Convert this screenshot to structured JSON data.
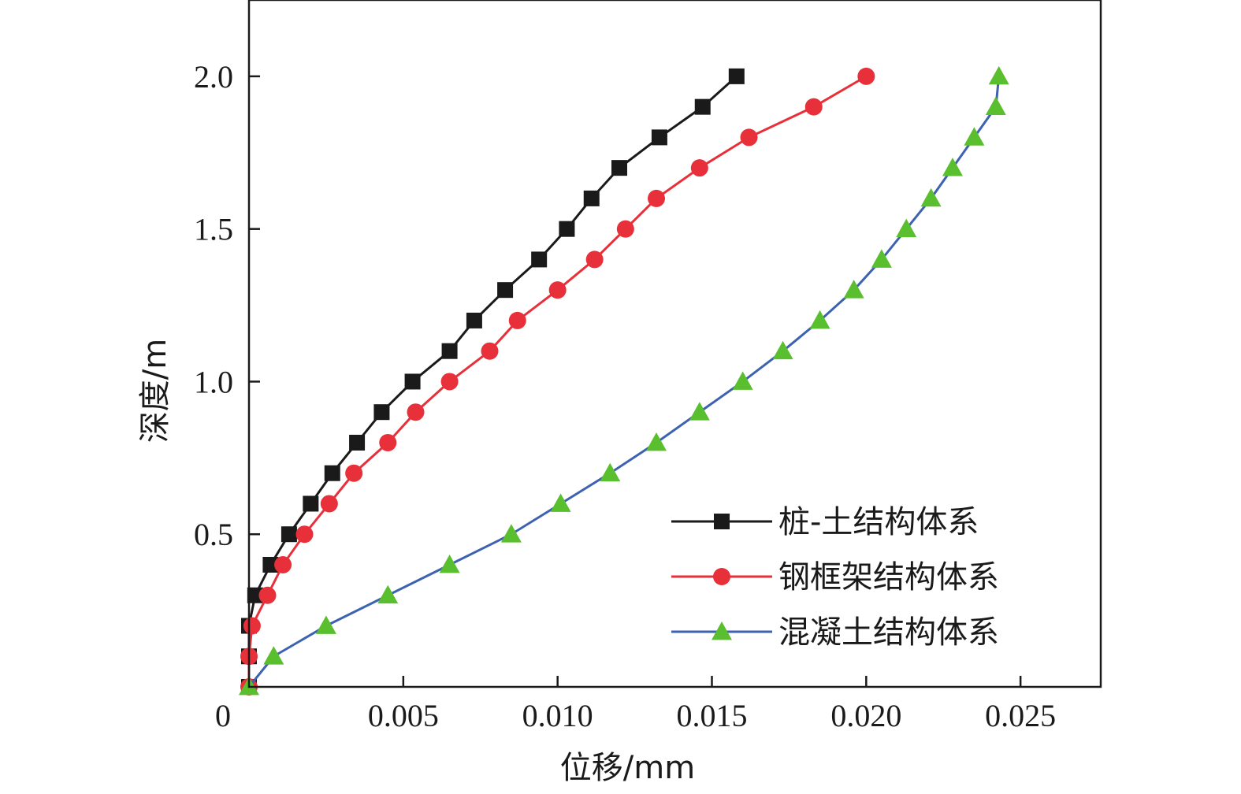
{
  "chart_data": {
    "type": "line",
    "title": "",
    "xlabel": "位移/mm",
    "ylabel": "深度/m",
    "xlim": [
      0,
      0.0276
    ],
    "ylim": [
      0,
      2.25
    ],
    "x_ticks": [
      0,
      0.005,
      0.01,
      0.015,
      0.02,
      0.025
    ],
    "x_tick_labels": [
      "0",
      "0.005",
      "0.010",
      "0.015",
      "0.020",
      "0.025"
    ],
    "y_ticks": [
      0.5,
      1.0,
      1.5,
      2.0
    ],
    "y_tick_labels": [
      "0.5",
      "1.0",
      "1.5",
      "2.0"
    ],
    "grid": false,
    "legend_position": "bottom-right",
    "series": [
      {
        "name": "桩-土结构体系",
        "color": "#1a1a1a",
        "marker": "square",
        "x": [
          0,
          0,
          0,
          0.0002,
          0.0007,
          0.0013,
          0.002,
          0.0027,
          0.0035,
          0.0043,
          0.0053,
          0.0065,
          0.0073,
          0.0083,
          0.0094,
          0.0103,
          0.0111,
          0.012,
          0.0133,
          0.0147,
          0.0158
        ],
        "y": [
          0,
          0.1,
          0.2,
          0.3,
          0.4,
          0.5,
          0.6,
          0.7,
          0.8,
          0.9,
          1.0,
          1.1,
          1.2,
          1.3,
          1.4,
          1.5,
          1.6,
          1.7,
          1.8,
          1.9,
          2.0
        ]
      },
      {
        "name": "钢框架结构体系",
        "color": "#e8303a",
        "marker": "circle",
        "x": [
          0,
          0,
          0.0001,
          0.0006,
          0.0011,
          0.0018,
          0.0026,
          0.0034,
          0.0045,
          0.0054,
          0.0065,
          0.0078,
          0.0087,
          0.01,
          0.0112,
          0.0122,
          0.0132,
          0.0146,
          0.0162,
          0.0183,
          0.02
        ],
        "y": [
          0,
          0.1,
          0.2,
          0.3,
          0.4,
          0.5,
          0.6,
          0.7,
          0.8,
          0.9,
          1.0,
          1.1,
          1.2,
          1.3,
          1.4,
          1.5,
          1.6,
          1.7,
          1.8,
          1.9,
          2.0
        ]
      },
      {
        "name": "混凝土结构体系",
        "color": "#3d62b0",
        "marker_color": "#5abf2e",
        "marker": "triangle",
        "x": [
          0,
          0.0008,
          0.0025,
          0.0045,
          0.0065,
          0.0085,
          0.0101,
          0.0117,
          0.0132,
          0.0146,
          0.016,
          0.0173,
          0.0185,
          0.0196,
          0.0205,
          0.0213,
          0.0221,
          0.0228,
          0.0235,
          0.0242,
          0.0243
        ],
        "y": [
          0,
          0.1,
          0.2,
          0.3,
          0.4,
          0.5,
          0.6,
          0.7,
          0.8,
          0.9,
          1.0,
          1.1,
          1.2,
          1.3,
          1.4,
          1.5,
          1.6,
          1.7,
          1.8,
          1.9,
          2.0
        ]
      }
    ]
  }
}
